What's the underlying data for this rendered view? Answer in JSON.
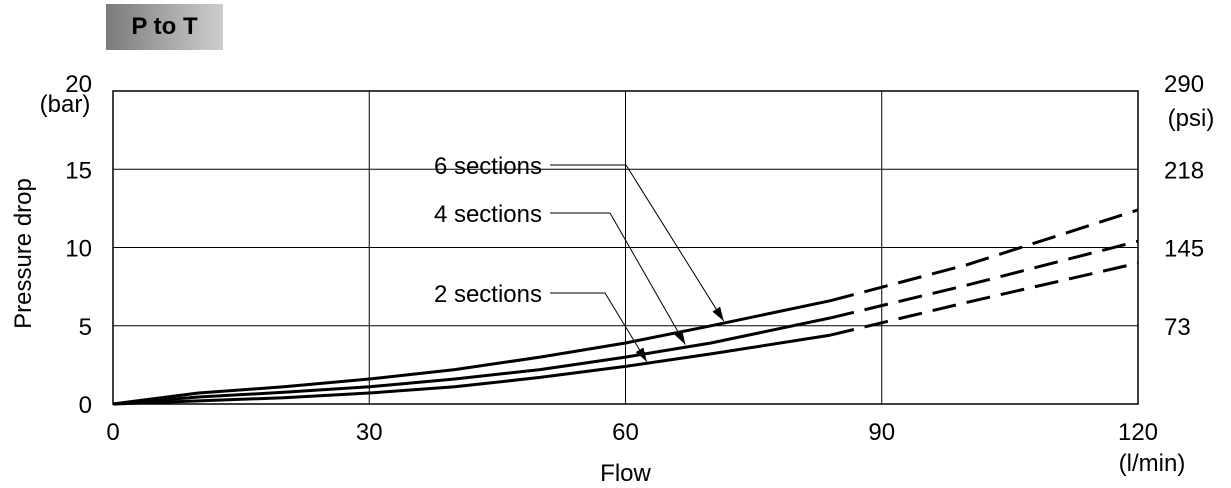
{
  "badge": {
    "label": "P to T"
  },
  "chart_data": {
    "type": "line",
    "x_unit": "(l/min)",
    "y_unit_left": "(bar)",
    "y_unit_right": "(psi)",
    "xlabel": "Flow",
    "ylabel": "Pressure drop",
    "xlim": [
      0,
      120
    ],
    "ylim": [
      0,
      20
    ],
    "x_ticks": [
      "0",
      "30",
      "60",
      "90",
      "120"
    ],
    "y_ticks_left": [
      "0",
      "5",
      "10",
      "15",
      "20"
    ],
    "y_ticks_right": [
      {
        "bar": 5,
        "label": "73"
      },
      {
        "bar": 10,
        "label": "145"
      },
      {
        "bar": 15,
        "label": "218"
      },
      {
        "bar": 20,
        "label": "290"
      }
    ],
    "grid": true,
    "series": [
      {
        "name": "6 sections",
        "solid": [
          [
            0,
            0
          ],
          [
            10,
            0.7
          ],
          [
            20,
            1.1
          ],
          [
            30,
            1.6
          ],
          [
            40,
            2.2
          ],
          [
            50,
            3.0
          ],
          [
            60,
            3.9
          ],
          [
            70,
            5.0
          ],
          [
            84,
            6.6
          ]
        ],
        "dashed": [
          [
            84,
            6.6
          ],
          [
            100,
            8.9
          ],
          [
            120,
            12.4
          ]
        ]
      },
      {
        "name": "4 sections",
        "solid": [
          [
            0,
            0
          ],
          [
            10,
            0.45
          ],
          [
            20,
            0.75
          ],
          [
            30,
            1.1
          ],
          [
            40,
            1.6
          ],
          [
            50,
            2.2
          ],
          [
            60,
            3.0
          ],
          [
            70,
            3.9
          ],
          [
            84,
            5.5
          ]
        ],
        "dashed": [
          [
            84,
            5.5
          ],
          [
            100,
            7.6
          ],
          [
            120,
            10.4
          ]
        ]
      },
      {
        "name": "2 sections",
        "solid": [
          [
            0,
            0
          ],
          [
            10,
            0.2
          ],
          [
            20,
            0.4
          ],
          [
            30,
            0.7
          ],
          [
            40,
            1.1
          ],
          [
            50,
            1.7
          ],
          [
            60,
            2.4
          ],
          [
            70,
            3.2
          ],
          [
            84,
            4.4
          ]
        ],
        "dashed": [
          [
            84,
            4.4
          ],
          [
            100,
            6.5
          ],
          [
            120,
            9.0
          ]
        ]
      }
    ],
    "annotations": [
      {
        "text": "6 sections",
        "x": 71.5,
        "y": 5.3
      },
      {
        "text": "4 sections",
        "x": 67,
        "y": 3.8
      },
      {
        "text": "2 sections",
        "x": 62.5,
        "y": 2.7
      }
    ]
  }
}
